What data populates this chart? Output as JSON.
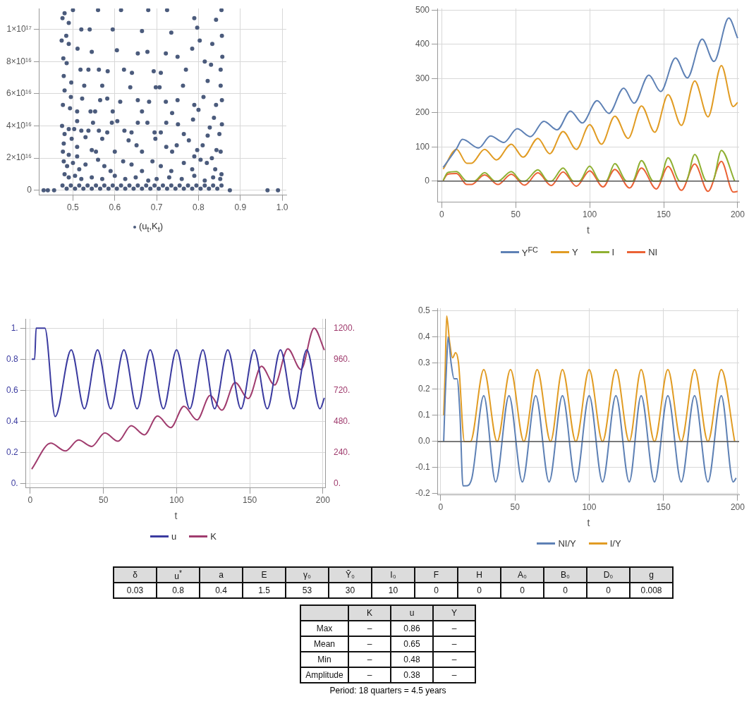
{
  "chart_data": [
    {
      "type": "scatter",
      "xlim": [
        0.42,
        1.01
      ],
      "ylim": [
        -3000000000000000.0,
        1.13e+17
      ],
      "xticks": [
        0.5,
        0.6,
        0.7,
        0.8,
        0.9,
        {
          "value": 1.0,
          "label": "1.0"
        }
      ],
      "yticks": [
        0,
        {
          "value": 2e+16,
          "label": "2×10¹⁶"
        },
        {
          "value": 4e+16,
          "label": "4×10¹⁶"
        },
        {
          "value": 6e+16,
          "label": "6×10¹⁶"
        },
        {
          "value": 8e+16,
          "label": "8×10¹⁶"
        },
        {
          "value": 1e+17,
          "label": "1×10¹⁷"
        }
      ],
      "grid": true,
      "legend": "bottom",
      "marker": "circle",
      "series": [
        {
          "name": "(u$_{t}$,K$_{t}$)",
          "color": "#4b5b7c",
          "x": [
            0.475,
            0.48,
            0.49,
            0.5,
            0.52,
            0.54,
            0.56,
            0.595,
            0.615,
            0.665,
            0.68,
            0.725,
            0.735,
            0.79,
            0.797,
            0.842,
            0.855,
            0.473,
            0.484,
            0.49,
            0.511,
            0.545,
            0.605,
            0.655,
            0.678,
            0.722,
            0.75,
            0.785,
            0.803,
            0.833,
            0.856,
            0.857,
            0.477,
            0.485,
            0.518,
            0.537,
            0.562,
            0.583,
            0.622,
            0.641,
            0.693,
            0.71,
            0.77,
            0.815,
            0.83,
            0.853,
            0.478,
            0.496,
            0.527,
            0.57,
            0.637,
            0.698,
            0.707,
            0.763,
            0.822,
            0.853,
            0.48,
            0.495,
            0.522,
            0.565,
            0.582,
            0.613,
            0.655,
            0.682,
            0.722,
            0.75,
            0.79,
            0.812,
            0.842,
            0.856,
            0.476,
            0.493,
            0.51,
            0.542,
            0.553,
            0.595,
            0.665,
            0.737,
            0.8,
            0.837,
            0.474,
            0.49,
            0.51,
            0.548,
            0.593,
            0.606,
            0.655,
            0.678,
            0.723,
            0.751,
            0.787,
            0.827,
            0.856,
            0.48,
            0.497,
            0.503,
            0.52,
            0.537,
            0.562,
            0.582,
            0.623,
            0.64,
            0.695,
            0.71,
            0.765,
            0.822,
            0.85,
            0.478,
            0.51,
            0.53,
            0.57,
            0.633,
            0.652,
            0.697,
            0.723,
            0.737,
            0.777,
            0.81,
            0.843,
            0.476,
            0.49,
            0.51,
            0.545,
            0.555,
            0.6,
            0.665,
            0.748,
            0.79,
            0.797,
            0.832,
            0.853,
            0.478,
            0.486,
            0.5,
            0.515,
            0.53,
            0.56,
            0.575,
            0.59,
            0.62,
            0.64,
            0.665,
            0.69,
            0.71,
            0.735,
            0.765,
            0.785,
            0.805,
            0.82,
            0.84,
            0.855,
            0.48,
            0.49,
            0.505,
            0.52,
            0.545,
            0.57,
            0.6,
            0.625,
            0.65,
            0.68,
            0.7,
            0.73,
            0.76,
            0.79,
            0.815,
            0.835,
            0.852,
            0.475,
            0.495,
            0.515,
            0.535,
            0.555,
            0.575,
            0.595,
            0.615,
            0.635,
            0.655,
            0.675,
            0.695,
            0.715,
            0.735,
            0.755,
            0.775,
            0.795,
            0.815,
            0.835,
            0.855,
            0.485,
            0.505,
            0.525,
            0.545,
            0.565,
            0.585,
            0.605,
            0.625,
            0.645,
            0.665,
            0.685,
            0.705,
            0.725,
            0.745,
            0.765,
            0.785,
            0.805,
            0.825,
            0.845,
            0.43,
            0.44,
            0.455,
            0.875,
            0.965,
            0.99
          ],
          "values": [
            1.07e+17,
            1.1e+17,
            1.04e+17,
            1.12e+17,
            1e+17,
            1e+17,
            1.12e+17,
            1e+17,
            1.12e+17,
            9.9e+16,
            1.12e+17,
            1.12e+17,
            9.8e+16,
            1.07e+17,
            1.01e+17,
            1.06e+17,
            1.12e+17,
            9.3e+16,
            9.6e+16,
            9.1e+16,
            8.8e+16,
            8.6e+16,
            8.7e+16,
            8.5e+16,
            8.6e+16,
            8.5e+16,
            8.3e+16,
            8.8e+16,
            9.3e+16,
            9.1e+16,
            9.6e+16,
            8.3e+16,
            8.2e+16,
            7.9e+16,
            7.5e+16,
            7.5e+16,
            7.5e+16,
            7.4e+16,
            7.5e+16,
            7.3e+16,
            7.4e+16,
            7.3e+16,
            7.5e+16,
            8e+16,
            7.8e+16,
            7.5e+16,
            7.1e+16,
            6.7e+16,
            6.5e+16,
            6.5e+16,
            6.4e+16,
            6.4e+16,
            6.4e+16,
            6.5e+16,
            6.8e+16,
            6.5e+16,
            6.2e+16,
            5.8e+16,
            5.7e+16,
            5.6e+16,
            5.7e+16,
            5.5e+16,
            5.6e+16,
            5.5e+16,
            5.5e+16,
            5.6e+16,
            5.3e+16,
            5.8e+16,
            5.3e+16,
            5.6e+16,
            5.3e+16,
            5.1e+16,
            4.9e+16,
            4.9e+16,
            4.9e+16,
            4.9e+16,
            4.9e+16,
            4.8e+16,
            5e+16,
            4.5e+16,
            4e+16,
            3.8e+16,
            4.3e+16,
            4.2e+16,
            4.2e+16,
            4.3e+16,
            4.2e+16,
            4.2e+16,
            4.2e+16,
            4.1e+16,
            4.4e+16,
            3.9e+16,
            4.1e+16,
            3.5e+16,
            3.2e+16,
            3.8e+16,
            3.7e+16,
            3.7e+16,
            3.7e+16,
            3.6e+16,
            3.7e+16,
            3.6e+16,
            3.6e+16,
            3.6e+16,
            3.5e+16,
            3.4e+16,
            3.5e+16,
            2.9e+16,
            2.7e+16,
            3.3e+16,
            3.2e+16,
            3.1e+16,
            2.8e+16,
            3.2e+16,
            2.7e+16,
            2.4e+16,
            3.1e+16,
            2.8e+16,
            2.5e+16,
            2.4e+16,
            2.2e+16,
            2.1e+16,
            2.5e+16,
            2.4e+16,
            2.4e+16,
            2.4e+16,
            2.8e+16,
            2.1e+16,
            2.5e+16,
            2e+16,
            2.4e+16,
            1.8e+16,
            1.5e+16,
            1.7e+16,
            1.3e+16,
            1.6e+16,
            1.9e+16,
            1.5e+16,
            1.2e+16,
            1.8e+16,
            1.6e+16,
            1.2e+16,
            1.8e+16,
            1.5e+16,
            1.2e+16,
            1.7e+16,
            1.3e+16,
            1.9e+16,
            1.7e+16,
            1.3e+16,
            1e+16,
            1e+16,
            8000000000000000.0,
            9000000000000000.0,
            7000000000000000.0,
            8000000000000000.0,
            7000000000000000.0,
            9000000000000000.0,
            7000000000000000.0,
            8000000000000000.0,
            6000000000000000.0,
            7000000000000000.0,
            8000000000000000.0,
            7000000000000000.0,
            9000000000000000.0,
            6000000000000000.0,
            8000000000000000.0,
            7000000000000000.0,
            3000000000000000.0,
            3000000000000000.0,
            3000000000000000.0,
            3000000000000000.0,
            3000000000000000.0,
            3000000000000000.0,
            3000000000000000.0,
            3000000000000000.0,
            3000000000000000.0,
            3000000000000000.0,
            3000000000000000.0,
            3000000000000000.0,
            3000000000000000.0,
            3000000000000000.0,
            3000000000000000.0,
            3000000000000000.0,
            3000000000000000.0,
            3000000000000000.0,
            3000000000000000.0,
            3000000000000000.0,
            1000000000000000.0,
            1000000000000000.0,
            1000000000000000.0,
            1000000000000000.0,
            1000000000000000.0,
            1000000000000000.0,
            1000000000000000.0,
            1000000000000000.0,
            1000000000000000.0,
            1000000000000000.0,
            1000000000000000.0,
            1000000000000000.0,
            1000000000000000.0,
            1000000000000000.0,
            1000000000000000.0,
            1000000000000000.0,
            1000000000000000.0,
            1000000000000000.0,
            1000000000000000.0,
            0,
            0,
            0,
            0,
            0,
            0
          ]
        }
      ]
    },
    {
      "type": "line",
      "xlabel": "t",
      "xlim": [
        -3,
        201
      ],
      "ylim": [
        -62,
        505
      ],
      "xticks": [
        0,
        50,
        100,
        150,
        200
      ],
      "yticks": [
        0,
        100,
        200,
        300,
        400,
        500
      ],
      "grid": true,
      "legend": "bottom",
      "marker": "none",
      "ref_lines": [
        {
          "axis": "y",
          "value": 0,
          "color": "#555555"
        }
      ],
      "series": [
        {
          "name": "Y$^{FC}$",
          "color": "#5e81b5",
          "x": [
            1,
            10,
            14,
            25,
            33,
            42,
            51,
            60,
            69,
            78,
            87,
            95,
            105,
            113,
            123,
            130,
            140,
            148,
            158,
            166,
            176,
            184,
            194,
            200
          ],
          "values": [
            40,
            95,
            122,
            97,
            132,
            113,
            153,
            130,
            175,
            150,
            205,
            170,
            235,
            198,
            272,
            228,
            310,
            262,
            360,
            302,
            415,
            350,
            477,
            418
          ]
        },
        {
          "name": "Y",
          "color": "#e19c24",
          "x": [
            1,
            10,
            17,
            20,
            29,
            37,
            47,
            55,
            65,
            73,
            82,
            91,
            100,
            108,
            117,
            126,
            135,
            144,
            153,
            162,
            171,
            180,
            189,
            197,
            200
          ],
          "values": [
            35,
            93,
            52,
            52,
            93,
            62,
            108,
            70,
            125,
            80,
            145,
            93,
            165,
            108,
            190,
            125,
            220,
            143,
            253,
            163,
            293,
            188,
            338,
            218,
            230
          ]
        },
        {
          "name": "I",
          "color": "#8fb032",
          "x": [
            1,
            4,
            10,
            17,
            22,
            29,
            36,
            38,
            47,
            54,
            56,
            65,
            72,
            74,
            82,
            89,
            93,
            100,
            107,
            111,
            117,
            125,
            129,
            135,
            143,
            147,
            153,
            161,
            165,
            171,
            179,
            183,
            189,
            198
          ],
          "values": [
            2,
            25,
            28,
            0,
            0,
            25,
            0,
            0,
            28,
            0,
            0,
            33,
            0,
            0,
            38,
            0,
            0,
            44,
            0,
            0,
            51,
            0,
            0,
            60,
            0,
            0,
            68,
            0,
            0,
            78,
            0,
            0,
            90,
            0
          ]
        },
        {
          "name": "NI",
          "color": "#eb6235",
          "x": [
            1,
            4,
            10,
            17,
            20,
            29,
            38,
            47,
            56,
            65,
            74,
            82,
            91,
            100,
            109,
            117,
            127,
            135,
            145,
            153,
            162,
            171,
            180,
            189,
            197,
            200
          ],
          "values": [
            2,
            20,
            22,
            -10,
            -10,
            18,
            -10,
            20,
            -12,
            24,
            -13,
            27,
            -15,
            30,
            -17,
            34,
            -20,
            38,
            -23,
            43,
            -27,
            50,
            -30,
            58,
            -32,
            -30
          ]
        }
      ]
    },
    {
      "type": "line",
      "xlabel": "t",
      "xlim": [
        -3,
        202
      ],
      "ylim": [
        -0.03,
        1.06
      ],
      "y2lim": [
        -36,
        1272
      ],
      "xticks": [
        0,
        50,
        100,
        150,
        200
      ],
      "yticks": [
        {
          "value": 0,
          "label": "0."
        },
        0.2,
        0.4,
        0.6,
        0.8,
        {
          "value": 1,
          "label": "1."
        }
      ],
      "y2ticks": [
        {
          "value": 0,
          "label": "0."
        },
        {
          "value": 240,
          "label": "240."
        },
        {
          "value": 480,
          "label": "480."
        },
        {
          "value": 720,
          "label": "720."
        },
        {
          "value": 960,
          "label": "960."
        },
        {
          "value": 1200,
          "label": "1200."
        }
      ],
      "grid": true,
      "legend": "bottom",
      "marker": "none",
      "series": [
        {
          "name": "u",
          "color": "#3b3ba0",
          "x": [
            1,
            3,
            4,
            10,
            17,
            28,
            37,
            46,
            55,
            64,
            73,
            82,
            91,
            100,
            109,
            118,
            126,
            135,
            144,
            153,
            162,
            171,
            180,
            189,
            198,
            201
          ],
          "values": [
            0.8,
            0.8,
            1.0,
            1.0,
            0.43,
            0.86,
            0.48,
            0.86,
            0.48,
            0.86,
            0.48,
            0.86,
            0.48,
            0.86,
            0.48,
            0.86,
            0.48,
            0.86,
            0.48,
            0.86,
            0.48,
            0.86,
            0.48,
            0.86,
            0.48,
            0.55
          ]
        },
        {
          "name": "K",
          "color": "#a03c6e",
          "axis": "y2",
          "x": [
            1,
            14,
            24,
            33,
            42,
            51,
            60,
            69,
            78,
            87,
            96,
            105,
            114,
            123,
            131,
            140,
            149,
            158,
            167,
            176,
            185,
            194,
            201
          ],
          "values": [
            110,
            310,
            250,
            335,
            285,
            390,
            325,
            445,
            375,
            520,
            430,
            595,
            490,
            680,
            565,
            780,
            655,
            905,
            760,
            1040,
            880,
            1200,
            1030
          ]
        }
      ]
    },
    {
      "type": "line",
      "xlabel": "t",
      "xlim": [
        -2,
        201
      ],
      "ylim": [
        -0.205,
        0.51
      ],
      "xticks": [
        0,
        50,
        100,
        150,
        200
      ],
      "yticks": [
        -0.2,
        -0.1,
        {
          "value": 0,
          "label": "0.0"
        },
        0.1,
        0.2,
        0.3,
        0.4,
        0.5
      ],
      "grid": true,
      "legend": "bottom",
      "marker": "none",
      "ref_lines": [
        {
          "axis": "y",
          "value": 0,
          "color": "#555555"
        }
      ],
      "series": [
        {
          "name": "NI/Y",
          "color": "#5e81b5",
          "x": [
            2,
            3,
            4,
            5,
            7,
            9,
            11,
            13,
            15,
            17,
            21,
            29,
            37,
            46,
            55,
            64,
            73,
            82,
            91,
            100,
            109,
            118,
            127,
            135,
            144,
            153,
            162,
            171,
            180,
            189,
            197,
            199
          ],
          "values": [
            0,
            0.17,
            0.3,
            0.4,
            0.3,
            0.24,
            0.24,
            0.1,
            -0.17,
            -0.17,
            -0.14,
            0.175,
            -0.155,
            0.175,
            -0.155,
            0.175,
            -0.155,
            0.175,
            -0.155,
            0.175,
            -0.155,
            0.175,
            -0.155,
            0.175,
            -0.155,
            0.175,
            -0.155,
            0.175,
            -0.155,
            0.175,
            -0.155,
            -0.14
          ]
        },
        {
          "name": "I/Y",
          "color": "#e19c24",
          "x": [
            2,
            3,
            4,
            6,
            8,
            10,
            12,
            16,
            20,
            29,
            38,
            47,
            56,
            65,
            74,
            82,
            91,
            100,
            109,
            118,
            127,
            135,
            144,
            153,
            162,
            171,
            180,
            189,
            198
          ],
          "values": [
            0.1,
            0.27,
            0.48,
            0.38,
            0.32,
            0.34,
            0.3,
            0,
            0,
            0.275,
            0,
            0.275,
            0,
            0.275,
            0,
            0.275,
            0,
            0.275,
            0,
            0.275,
            0,
            0.275,
            0,
            0.275,
            0,
            0.275,
            0,
            0.275,
            0
          ]
        }
      ]
    },
    {
      "type": "other",
      "categories": [
        "δ",
        "u$^{*}$",
        "a",
        "E",
        "γ₀",
        "Ȳ₀",
        "I₀",
        "F",
        "H",
        "A₀",
        "B₀",
        "D₀",
        "g"
      ],
      "cell_labels": [
        [
          "0.03",
          "0.8",
          "0.4",
          "1.5",
          "53",
          "30",
          "10",
          "0",
          "0",
          "0",
          "0",
          "0",
          "0.008"
        ]
      ]
    },
    {
      "type": "other",
      "categories": [
        "K",
        "u",
        "Y"
      ],
      "y_categories": [
        "Max",
        "Mean",
        "Min",
        "Amplitude"
      ],
      "cell_labels": [
        [
          "–",
          "0.86",
          "–"
        ],
        [
          "–",
          "0.65",
          "–"
        ],
        [
          "–",
          "0.48",
          "–"
        ],
        [
          "–",
          "0.38",
          "–"
        ]
      ],
      "annotations": [
        "Period: 18 quarters = 4.5 years"
      ]
    }
  ]
}
